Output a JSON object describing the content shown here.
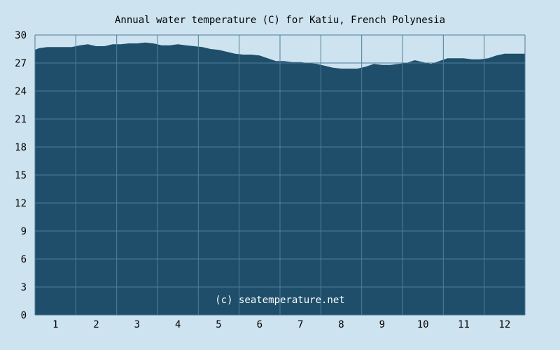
{
  "colors": {
    "background": "#cde3ef",
    "plot_fill": "#1e4e6a",
    "grid": "#4f7f99",
    "text": "#000000",
    "watermark": "#ffffff"
  },
  "chart_data": {
    "type": "area",
    "title": "Annual water temperature (C) for Katiu, French Polynesia",
    "watermark": "(c) seatemperature.net",
    "xlabel": "",
    "ylabel": "",
    "xlim": [
      0.5,
      12.5
    ],
    "ylim": [
      0,
      30
    ],
    "grid": true,
    "x_ticks": [
      "1",
      "2",
      "3",
      "4",
      "5",
      "6",
      "7",
      "8",
      "9",
      "10",
      "11",
      "12"
    ],
    "y_ticks": [
      "0",
      "3",
      "6",
      "9",
      "12",
      "15",
      "18",
      "21",
      "24",
      "27",
      "30"
    ],
    "series": [
      {
        "x": [
          0.5,
          0.6,
          0.8,
          1.0,
          1.2,
          1.4,
          1.6,
          1.8,
          2.0,
          2.2,
          2.4,
          2.6,
          2.8,
          3.0,
          3.2,
          3.4,
          3.6,
          3.8,
          4.0,
          4.2,
          4.4,
          4.6,
          4.8,
          5.0,
          5.2,
          5.4,
          5.6,
          5.8,
          6.0,
          6.2,
          6.4,
          6.6,
          6.8,
          7.0,
          7.2,
          7.4,
          7.6,
          7.8,
          8.0,
          8.2,
          8.4,
          8.6,
          8.8,
          9.0,
          9.2,
          9.4,
          9.6,
          9.8,
          10.0,
          10.2,
          10.4,
          10.6,
          10.8,
          11.0,
          11.2,
          11.4,
          11.6,
          11.8,
          12.0,
          12.2,
          12.4,
          12.5
        ],
        "values": [
          28.4,
          28.6,
          28.7,
          28.7,
          28.7,
          28.7,
          28.9,
          29.0,
          28.8,
          28.8,
          29.0,
          29.0,
          29.1,
          29.1,
          29.2,
          29.1,
          28.9,
          28.9,
          29.0,
          28.9,
          28.8,
          28.7,
          28.5,
          28.4,
          28.2,
          28.0,
          27.9,
          27.9,
          27.8,
          27.5,
          27.2,
          27.2,
          27.1,
          27.1,
          27.0,
          26.9,
          26.7,
          26.5,
          26.4,
          26.4,
          26.4,
          26.6,
          26.9,
          26.8,
          26.8,
          26.9,
          27.0,
          27.3,
          27.1,
          26.9,
          27.2,
          27.5,
          27.5,
          27.5,
          27.4,
          27.4,
          27.5,
          27.8,
          28.0,
          28.0,
          28.0,
          28.0
        ]
      }
    ]
  }
}
